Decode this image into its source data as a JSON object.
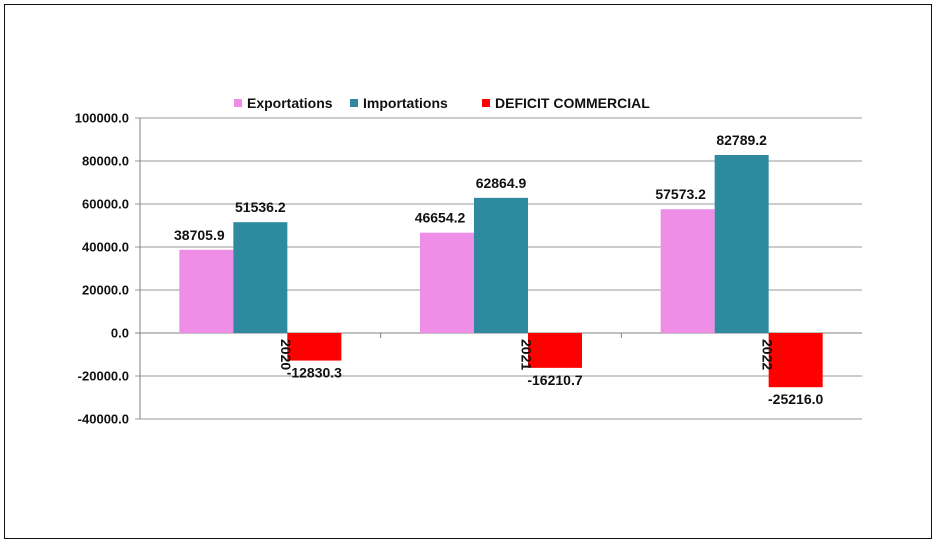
{
  "chart_data": {
    "type": "bar",
    "title": "",
    "xlabel": "",
    "ylabel": "",
    "categories": [
      "2020",
      "2021",
      "2022"
    ],
    "series": [
      {
        "name": "Exportations",
        "color": "#EE8EE6",
        "values": [
          38705.9,
          46654.2,
          57573.2
        ],
        "labels": [
          "38705.9",
          "46654.2",
          "57573.2"
        ]
      },
      {
        "name": "Importations",
        "color": "#2E8A9E",
        "values": [
          51536.2,
          62864.9,
          82789.2
        ],
        "labels": [
          "51536.2",
          "62864.9",
          "82789.2"
        ]
      },
      {
        "name": "DEFICIT COMMERCIAL",
        "color": "#FF0000",
        "values": [
          -12830.3,
          -16210.7,
          -25216.0
        ],
        "labels": [
          "-12830.3",
          "-16210.7",
          "-25216.0"
        ]
      }
    ],
    "ylim": [
      -40000,
      100000
    ],
    "yticks": [
      "100000.0",
      "80000.0",
      "60000.0",
      "40000.0",
      "20000.0",
      "0.0",
      "-20000.0",
      "-40000.0"
    ],
    "grid": true,
    "legend": "top-center"
  }
}
